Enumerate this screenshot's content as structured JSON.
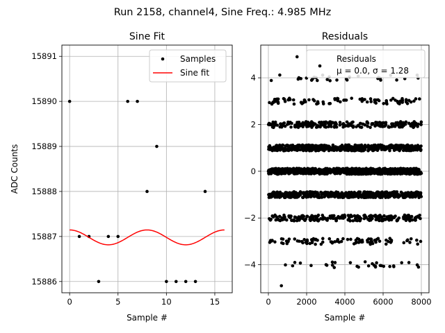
{
  "figure": {
    "suptitle": "Run 2158, channel4, Sine Freq.: 4.985 MHz"
  },
  "chart_data": [
    {
      "type": "scatter",
      "title": "Sine Fit",
      "xlabel": "Sample #",
      "ylabel": "ADC Counts",
      "xlim": [
        -0.8,
        16.8
      ],
      "ylim": [
        15885.75,
        15891.25
      ],
      "xticks": [
        0,
        5,
        10,
        15
      ],
      "xtick_labels": [
        "0",
        "5",
        "10",
        "15"
      ],
      "yticks": [
        15886,
        15887,
        15888,
        15889,
        15890,
        15891
      ],
      "ytick_labels": [
        "15886",
        "15887",
        "15888",
        "15889",
        "15890",
        "15891"
      ],
      "grid": true,
      "legend_position": "upper right",
      "series": [
        {
          "name": "Samples",
          "kind": "points",
          "color": "#000000",
          "x": [
            0,
            1,
            2,
            3,
            4,
            5,
            6,
            7,
            8,
            9,
            10,
            11,
            12,
            13,
            14
          ],
          "y": [
            15890,
            15887,
            15887,
            15886,
            15887,
            15887,
            15890,
            15890,
            15888,
            15889,
            15886,
            15886,
            15886,
            15886,
            15888
          ]
        },
        {
          "name": "Sine fit",
          "kind": "line",
          "color": "#ff0000",
          "function": "sine",
          "offset": 15886.98,
          "amplitude": 0.165,
          "period": 8.0,
          "phase": 1.57,
          "x_range": [
            0,
            16
          ]
        }
      ]
    },
    {
      "type": "scatter",
      "title": "Residuals",
      "xlabel": "Sample #",
      "ylabel": "",
      "xlim": [
        -400,
        8400
      ],
      "ylim": [
        -5.2,
        5.4
      ],
      "xticks": [
        0,
        2000,
        4000,
        6000,
        8000
      ],
      "xtick_labels": [
        "0",
        "2000",
        "4000",
        "6000",
        "8000"
      ],
      "yticks": [
        -4,
        -2,
        0,
        2,
        4
      ],
      "ytick_labels": [
        "−4",
        "−2",
        "0",
        "2",
        "4"
      ],
      "grid": true,
      "legend_position": "upper right",
      "legend_label": "Residuals",
      "legend_label_stats": "μ = 0.0, σ = 1.28",
      "series": [
        {
          "name": "Residuals",
          "kind": "points",
          "color": "#000000",
          "x_range": [
            0,
            8000
          ],
          "levels": [
            -4,
            -3,
            -2,
            -1,
            0,
            1,
            2,
            3,
            4
          ],
          "points_per_level": [
            30,
            90,
            220,
            520,
            700,
            520,
            220,
            90,
            30
          ],
          "extra_points": [
            [
              1500,
              4.9
            ],
            [
              680,
              -4.9
            ],
            [
              2700,
              4.5
            ],
            [
              7850,
              -4.1
            ]
          ]
        }
      ]
    }
  ]
}
